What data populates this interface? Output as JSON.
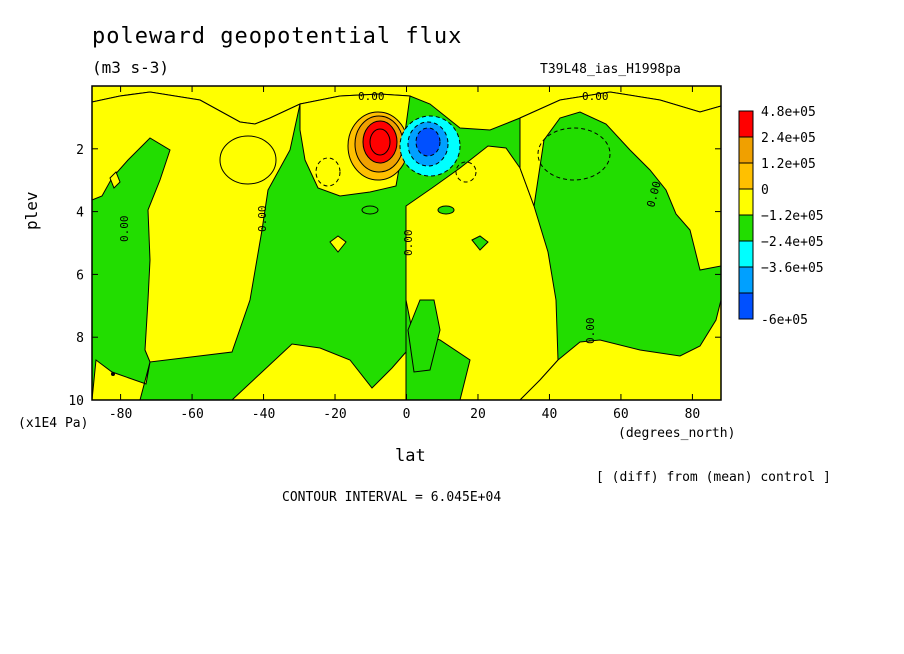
{
  "header": {
    "title": "poleward geopotential flux",
    "units": "(m3 s-3)",
    "run_id": "T39L48_ias_H1998pa"
  },
  "footer": {
    "comparison_note": "[ (diff) from (mean) control ]",
    "contour_interval": "CONTOUR INTERVAL = 6.045E+04"
  },
  "colors": {
    "red": "#ff0000",
    "orange": "#f0a000",
    "light_orange": "#ffc000",
    "yellow": "#ffff00",
    "green": "#22dd00",
    "cyan": "#00ffff",
    "light_blue": "#00a0ff",
    "blue": "#0050ff"
  },
  "chart_data": {
    "type": "heatmap",
    "title": "poleward geopotential flux",
    "xlabel": "lat",
    "x_units": "(degrees_north)",
    "ylabel": "plev",
    "y_units": "(x1E4 Pa)",
    "xlim": [
      -88,
      88
    ],
    "ylim": [
      10,
      0
    ],
    "xticks": [
      "-80",
      "-60",
      "-40",
      "-20",
      "0",
      "20",
      "40",
      "60",
      "80"
    ],
    "xtick_values": [
      -80,
      -60,
      -40,
      -20,
      0,
      20,
      40,
      60,
      80
    ],
    "yticks": [
      "2",
      "4",
      "6",
      "8",
      "10"
    ],
    "ytick_values": [
      2,
      4,
      6,
      8,
      10
    ],
    "legend": {
      "placement": "right",
      "labels": [
        "4.8e+05",
        "2.4e+05",
        "1.2e+05",
        "0",
        "−1.2e+05",
        "−2.4e+05",
        "−3.6e+05",
        "-6e+05"
      ],
      "colors": [
        "#ff0000",
        "#f0a000",
        "#ffc000",
        "#ffff00",
        "#22dd00",
        "#00ffff",
        "#00a0ff",
        "#0050ff"
      ]
    },
    "contour_labels": [
      "0.00",
      "0.00",
      "0.00",
      "0.00",
      "0.00",
      "0.00",
      "0.00"
    ],
    "contour_interval": 60450,
    "features": [
      {
        "name": "positive maximum",
        "lat": -7,
        "plev": 1.9,
        "level": "above 4.8e+05"
      },
      {
        "name": "negative minimum",
        "lat": 6,
        "plev": 1.9,
        "level": "-3.6e+05 to -6e+05"
      }
    ]
  }
}
